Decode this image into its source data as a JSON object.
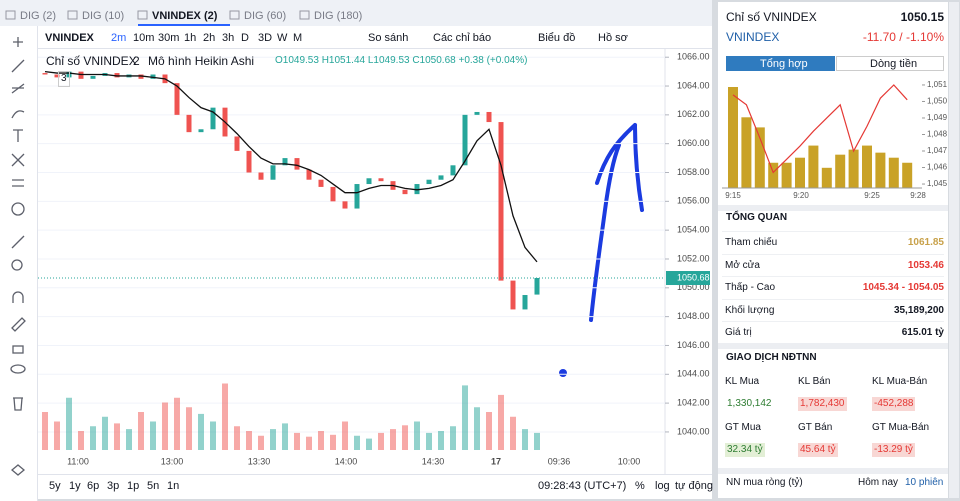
{
  "tabs": [
    "DIG (2)",
    "DIG (10)",
    "VNINDEX (2)",
    "DIG (60)",
    "DIG (180)"
  ],
  "toolbar": {
    "symbol": "VNINDEX",
    "intervals": [
      "2m",
      "10m",
      "30m",
      "1h",
      "2h",
      "3h",
      "D",
      "3D",
      "W",
      "M"
    ],
    "compare": "So sánh",
    "indicators": "Các chỉ báo",
    "chart_type": "Biểu đồ",
    "profile": "Hồ sơ"
  },
  "legend": {
    "title": "Chỉ số VNINDEX",
    "interval": "2",
    "style": "Mô hình Heikin Ashi",
    "ohlc": "O1049.53 H1051.44 L1049.53 C1050.68 +0.38 (+0.04%)",
    "collapse": "3"
  },
  "main_chart": {
    "type": "heikin-ashi",
    "up_color": "#26a69a",
    "down_color": "#ef5350",
    "open": [
      1064.9,
      1064.8,
      1064.6,
      1065.0,
      1064.5,
      1064.7,
      1064.9,
      1064.6,
      1064.8,
      1064.5,
      1064.8,
      1064.2,
      1062.0,
      1060.8,
      1061.0,
      1062.5,
      1060.5,
      1059.5,
      1058.0,
      1057.5,
      1058.5,
      1059.0,
      1058.2,
      1057.5,
      1057.0,
      1056.0,
      1055.5,
      1057.2,
      1057.6,
      1057.4,
      1056.8,
      1056.5,
      1057.2,
      1057.5,
      1057.8,
      1058.5,
      1062.0,
      1062.2,
      1061.5,
      1050.5,
      1048.5,
      1049.53
    ],
    "close": [
      1064.8,
      1064.6,
      1065.0,
      1064.5,
      1064.7,
      1064.9,
      1064.6,
      1064.8,
      1064.5,
      1064.8,
      1064.2,
      1062.0,
      1060.8,
      1061.0,
      1062.5,
      1060.5,
      1059.5,
      1058.0,
      1057.5,
      1058.5,
      1059.0,
      1058.2,
      1057.5,
      1057.0,
      1056.0,
      1055.5,
      1057.2,
      1057.6,
      1057.4,
      1056.8,
      1056.5,
      1057.2,
      1057.5,
      1057.8,
      1058.5,
      1062.0,
      1062.2,
      1061.5,
      1050.5,
      1048.5,
      1049.5,
      1050.68
    ],
    "ma": {
      "color": "#111111",
      "values": [
        1065.0,
        1064.9,
        1064.9,
        1064.8,
        1064.8,
        1064.8,
        1064.7,
        1064.7,
        1064.7,
        1064.6,
        1064.5,
        1064.0,
        1063.2,
        1062.5,
        1062.2,
        1061.5,
        1060.7,
        1059.8,
        1059.0,
        1058.6,
        1058.6,
        1058.5,
        1058.2,
        1057.8,
        1057.2,
        1056.6,
        1056.6,
        1056.9,
        1057.1,
        1057.1,
        1056.9,
        1056.8,
        1056.9,
        1057.1,
        1057.5,
        1058.8,
        1060.2,
        1061.0,
        1058.5,
        1055.0,
        1052.8,
        1051.8
      ]
    },
    "volume": [
      40,
      30,
      55,
      20,
      25,
      35,
      28,
      22,
      40,
      30,
      50,
      55,
      45,
      38,
      30,
      70,
      25,
      20,
      15,
      22,
      28,
      18,
      14,
      20,
      16,
      30,
      15,
      12,
      18,
      22,
      26,
      30,
      18,
      20,
      25,
      68,
      45,
      40,
      58,
      35,
      22,
      18
    ],
    "vlim": [
      0,
      100
    ],
    "ylim": [
      1038.4,
      1066.5
    ],
    "yticks": [
      {
        "value": 1066,
        "label": "1066.00"
      },
      {
        "value": 1064,
        "label": "1064.00"
      },
      {
        "value": 1062,
        "label": "1062.00"
      },
      {
        "value": 1060,
        "label": "1060.00"
      },
      {
        "value": 1058,
        "label": "1058.00"
      },
      {
        "value": 1056,
        "label": "1056.00"
      },
      {
        "value": 1054,
        "label": "1054.00"
      },
      {
        "value": 1052,
        "label": "1052.00"
      },
      {
        "value": 1050,
        "label": "1050.00"
      },
      {
        "value": 1048,
        "label": "1048.00"
      },
      {
        "value": 1046,
        "label": "1046.00"
      },
      {
        "value": 1044,
        "label": "1044.00"
      },
      {
        "value": 1042,
        "label": "1042.00"
      },
      {
        "value": 1040,
        "label": "1040.00"
      }
    ],
    "last_price": {
      "value": 1050.68,
      "label": "1050.68"
    },
    "time_labels": [
      "11:00",
      "13:00",
      "13:30",
      "14:00",
      "14:30",
      "17",
      "09:36",
      "10:00"
    ]
  },
  "bottom_bar": {
    "ranges": [
      "5y",
      "1y",
      "6p",
      "3p",
      "1p",
      "5n",
      "1n"
    ],
    "clock": "09:28:43 (UTC+7)",
    "percent": "%",
    "log": "log",
    "auto": "tự động"
  },
  "panel": {
    "title": "Chỉ số VNINDEX",
    "price": "1050.15",
    "symbol": "VNINDEX",
    "change": "-11.70 / -1.10%",
    "tabs": [
      "Tổng hợp",
      "Dòng tiền"
    ],
    "mini_chart": {
      "type": "bar-line",
      "bar_color": "#c9a227",
      "line_color": "#e53935",
      "bars": [
        100,
        70,
        60,
        25,
        25,
        30,
        42,
        20,
        33,
        38,
        42,
        35,
        30,
        25
      ],
      "blim": [
        0,
        100
      ],
      "line": [
        1050.4,
        1049.8,
        1047.8,
        1045.7,
        1046.5,
        1047.3,
        1048.2,
        1049.0,
        1049.8,
        1047.0,
        1048.5,
        1050.2,
        1051.0,
        1050.1
      ],
      "ylim": [
        1044.76,
        1051.3
      ],
      "yticks": [
        {
          "value": 1051,
          "label": "1,051"
        },
        {
          "value": 1050,
          "label": "1,050"
        },
        {
          "value": 1049,
          "label": "1,049"
        },
        {
          "value": 1048,
          "label": "1,048"
        },
        {
          "value": 1047,
          "label": "1,047"
        },
        {
          "value": 1046,
          "label": "1,046"
        },
        {
          "value": 1045,
          "label": "1,045"
        }
      ],
      "x_labels": [
        "9:15",
        "9:20",
        "9:25",
        "9:28"
      ]
    },
    "overview_title": "TỔNG QUAN",
    "overview": [
      [
        "Tham chiếu",
        "1061.85"
      ],
      [
        "Mở cửa",
        "1053.46"
      ],
      [
        "Thấp - Cao",
        "1045.34 - 1054.05"
      ],
      [
        "Khối lượng",
        "35,189,200"
      ],
      [
        "Giá trị",
        "615.01 tỷ"
      ]
    ],
    "foreign_title": "GIAO DỊCH NĐTNN",
    "foreign": [
      [
        [
          "KL Mua",
          "1,330,142"
        ],
        [
          "KL Bán",
          "1,782,430"
        ],
        [
          "KL Mua-Bán",
          "-452,288"
        ]
      ],
      [
        [
          "GT Mua",
          "32.34 tỷ"
        ],
        [
          "GT Bán",
          "45.64 tỷ"
        ],
        [
          "GT Mua-Bán",
          "-13.29 tỷ"
        ]
      ]
    ],
    "footer": [
      "NN mua ròng (tỷ)",
      "Hôm nay",
      "10 phiên"
    ]
  }
}
